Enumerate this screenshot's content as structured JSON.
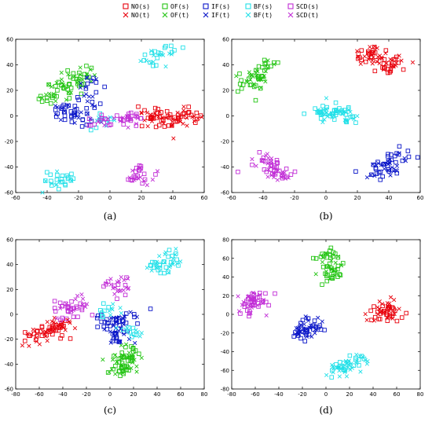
{
  "legend": {
    "items": [
      {
        "label": "NO(s)",
        "marker": "square",
        "color": "#e8000b"
      },
      {
        "label": "NO(t)",
        "marker": "cross",
        "color": "#e8000b"
      },
      {
        "label": "OF(s)",
        "marker": "square",
        "color": "#22c412"
      },
      {
        "label": "OF(t)",
        "marker": "cross",
        "color": "#22c412"
      },
      {
        "label": "IF(s)",
        "marker": "square",
        "color": "#0a15c8"
      },
      {
        "label": "IF(t)",
        "marker": "cross",
        "color": "#0a15c8"
      },
      {
        "label": "BF(s)",
        "marker": "square",
        "color": "#21e0e8"
      },
      {
        "label": "BF(t)",
        "marker": "cross",
        "color": "#21e0e8"
      },
      {
        "label": "SCD(s)",
        "marker": "square",
        "color": "#c12cd6"
      },
      {
        "label": "SCD(t)",
        "marker": "cross",
        "color": "#c12cd6"
      }
    ]
  },
  "chart_data": [
    {
      "type": "scatter",
      "caption": "(a)",
      "xlim": [
        -60,
        60
      ],
      "ylim": [
        -60,
        60
      ],
      "xticks": [
        -60,
        -40,
        -20,
        0,
        20,
        40,
        60
      ],
      "yticks": [
        -60,
        -40,
        -20,
        0,
        20,
        40,
        60
      ],
      "clusters": [
        {
          "series": "NO",
          "points": [
            [
              48,
              0
            ],
            [
              40,
              -3
            ],
            [
              30,
              2
            ],
            [
              55,
              -2
            ],
            [
              35,
              -5
            ],
            [
              25,
              -3
            ]
          ]
        },
        {
          "series": "OF",
          "points": [
            [
              -33,
              22
            ],
            [
              -40,
              14
            ],
            [
              -22,
              30
            ],
            [
              -15,
              33
            ],
            [
              -28,
              20
            ]
          ]
        },
        {
          "series": "IF",
          "points": [
            [
              -25,
              2
            ],
            [
              -15,
              10
            ],
            [
              -18,
              -3
            ],
            [
              -12,
              25
            ],
            [
              -30,
              3
            ]
          ]
        },
        {
          "series": "BF",
          "points": [
            [
              28,
              45
            ],
            [
              35,
              50
            ],
            [
              -37,
              -50
            ],
            [
              -30,
              -48
            ],
            [
              -5,
              -3
            ]
          ]
        },
        {
          "series": "SCD",
          "points": [
            [
              20,
              -45
            ],
            [
              15,
              -50
            ],
            [
              8,
              -3
            ],
            [
              -5,
              -4
            ],
            [
              13,
              -2
            ]
          ]
        }
      ]
    },
    {
      "type": "scatter",
      "caption": "(b)",
      "xlim": [
        -60,
        60
      ],
      "ylim": [
        -60,
        60
      ],
      "xticks": [
        -60,
        -40,
        -20,
        0,
        20,
        40,
        60
      ],
      "yticks": [
        -60,
        -40,
        -20,
        0,
        20,
        40,
        60
      ],
      "clusters": [
        {
          "series": "NO",
          "points": [
            [
              35,
              45
            ],
            [
              25,
              48
            ],
            [
              45,
              42
            ],
            [
              30,
              50
            ],
            [
              40,
              40
            ]
          ]
        },
        {
          "series": "OF",
          "points": [
            [
              -45,
              32
            ],
            [
              -50,
              25
            ],
            [
              -38,
              38
            ],
            [
              -42,
              28
            ]
          ]
        },
        {
          "series": "IF",
          "points": [
            [
              40,
              -38
            ],
            [
              32,
              -44
            ],
            [
              48,
              -32
            ],
            [
              36,
              -42
            ]
          ]
        },
        {
          "series": "BF",
          "points": [
            [
              5,
              2
            ],
            [
              -5,
              2
            ],
            [
              15,
              0
            ],
            [
              10,
              3
            ],
            [
              0,
              0
            ]
          ]
        },
        {
          "series": "SCD",
          "points": [
            [
              -35,
              -40
            ],
            [
              -42,
              -36
            ],
            [
              -28,
              -46
            ],
            [
              -32,
              -42
            ]
          ]
        }
      ]
    },
    {
      "type": "scatter",
      "caption": "(c)",
      "xlim": [
        -80,
        80
      ],
      "ylim": [
        -60,
        60
      ],
      "xticks": [
        -80,
        -60,
        -40,
        -20,
        0,
        20,
        40,
        60,
        80
      ],
      "yticks": [
        -60,
        -40,
        -20,
        0,
        20,
        40,
        60
      ],
      "clusters": [
        {
          "series": "NO",
          "points": [
            [
              -55,
              -13
            ],
            [
              -65,
              -18
            ],
            [
              -45,
              -10
            ],
            [
              -40,
              -7
            ],
            [
              -50,
              -15
            ]
          ]
        },
        {
          "series": "OF",
          "points": [
            [
              12,
              -40
            ],
            [
              18,
              -35
            ],
            [
              8,
              -45
            ],
            [
              15,
              -30
            ],
            [
              10,
              -38
            ]
          ]
        },
        {
          "series": "IF",
          "points": [
            [
              5,
              -5
            ],
            [
              10,
              -15
            ],
            [
              -2,
              -5
            ],
            [
              15,
              -3
            ],
            [
              8,
              -20
            ]
          ]
        },
        {
          "series": "BF",
          "points": [
            [
              48,
              40
            ],
            [
              55,
              45
            ],
            [
              40,
              35
            ],
            [
              -1,
              5
            ],
            [
              20,
              -15
            ]
          ]
        },
        {
          "series": "SCD",
          "points": [
            [
              -35,
              5
            ],
            [
              -25,
              8
            ],
            [
              5,
              25
            ],
            [
              10,
              20
            ],
            [
              -40,
              3
            ]
          ]
        }
      ]
    },
    {
      "type": "scatter",
      "caption": "(d)",
      "xlim": [
        -80,
        80
      ],
      "ylim": [
        -80,
        80
      ],
      "xticks": [
        -80,
        -60,
        -40,
        -20,
        0,
        20,
        40,
        60,
        80
      ],
      "yticks": [
        -80,
        -60,
        -40,
        -20,
        0,
        20,
        40,
        60,
        80
      ],
      "clusters": [
        {
          "series": "NO",
          "points": [
            [
              50,
              3
            ],
            [
              55,
              8
            ],
            [
              45,
              0
            ],
            [
              52,
              -2
            ]
          ]
        },
        {
          "series": "OF",
          "points": [
            [
              5,
              55
            ],
            [
              7,
              48
            ],
            [
              3,
              62
            ],
            [
              5,
              42
            ]
          ]
        },
        {
          "series": "IF",
          "points": [
            [
              -15,
              -15
            ],
            [
              -22,
              -20
            ],
            [
              -8,
              -10
            ],
            [
              -18,
              -18
            ]
          ]
        },
        {
          "series": "BF",
          "points": [
            [
              20,
              -55
            ],
            [
              10,
              -60
            ],
            [
              28,
              -50
            ],
            [
              15,
              -57
            ]
          ]
        },
        {
          "series": "SCD",
          "points": [
            [
              -60,
              12
            ],
            [
              -62,
              5
            ],
            [
              -57,
              20
            ],
            [
              -63,
              15
            ]
          ]
        }
      ]
    }
  ]
}
